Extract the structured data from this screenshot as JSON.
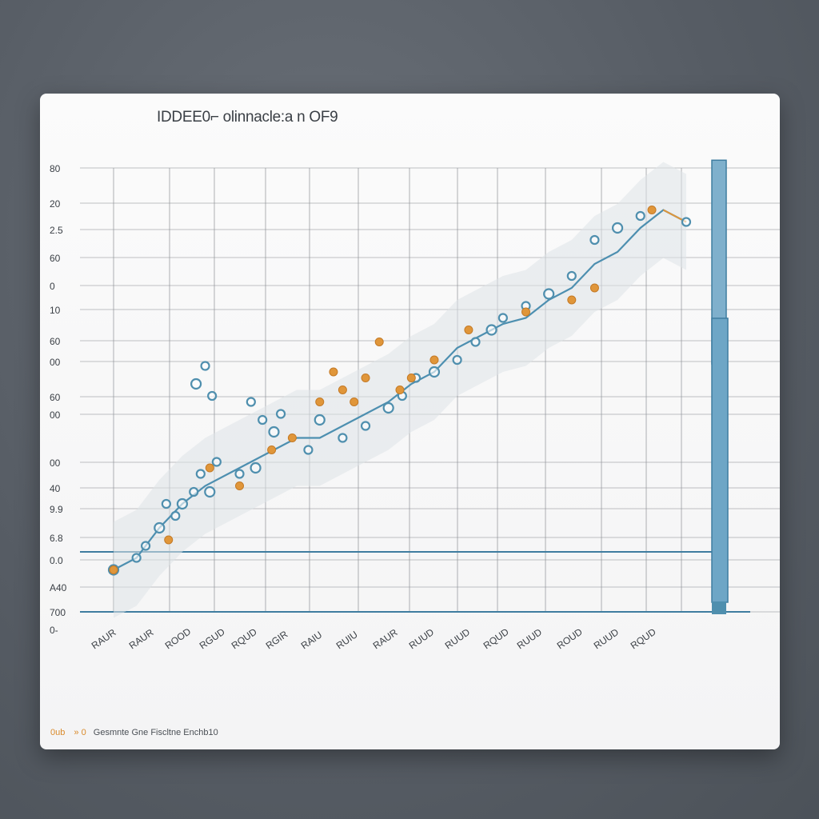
{
  "chart_data": {
    "type": "scatter",
    "title": "IDDEE0⌐ olinnacle:a n OF9",
    "yticks": [
      "80",
      "20",
      "2.5",
      "60",
      "0",
      "10",
      "60",
      "00",
      "60",
      "00",
      "00",
      "40",
      "9.9",
      "6.8",
      "0.0",
      "A40",
      "700"
    ],
    "xticks": [
      "RAUR",
      "RAUR",
      "ROOD",
      "RGUD",
      "RQUD",
      "RGIR",
      "RAIU",
      "RUIU",
      "RAUR",
      "RUUD",
      "RUUD",
      "RQUD",
      "RUUD",
      "ROUD",
      "RUUD",
      "RQUD"
    ],
    "x0_label": "0-",
    "grid": true,
    "trend": [
      [
        5,
        11
      ],
      [
        6,
        13
      ],
      [
        7,
        18
      ],
      [
        8,
        22
      ],
      [
        9,
        25
      ],
      [
        10,
        27
      ],
      [
        11,
        29
      ],
      [
        12,
        31
      ],
      [
        13,
        33
      ],
      [
        14,
        33
      ],
      [
        15,
        35
      ],
      [
        16,
        37
      ],
      [
        17,
        39
      ],
      [
        18,
        42
      ],
      [
        19,
        44
      ],
      [
        20,
        48
      ],
      [
        21,
        50
      ],
      [
        22,
        52
      ],
      [
        23,
        53
      ],
      [
        24,
        56
      ],
      [
        25,
        58
      ],
      [
        26,
        62
      ],
      [
        27,
        64
      ],
      [
        28,
        68
      ],
      [
        29,
        71
      ],
      [
        30,
        69
      ]
    ],
    "points_blue": [
      [
        5,
        11
      ],
      [
        6,
        13
      ],
      [
        6.4,
        15
      ],
      [
        7,
        18
      ],
      [
        7.3,
        22
      ],
      [
        7.7,
        20
      ],
      [
        8,
        22
      ],
      [
        8.5,
        24
      ],
      [
        8.8,
        27
      ],
      [
        9.2,
        24
      ],
      [
        9.5,
        29
      ],
      [
        10.5,
        27
      ],
      [
        11.2,
        28
      ],
      [
        11.5,
        36
      ],
      [
        11,
        39
      ],
      [
        12,
        34
      ],
      [
        12.3,
        37
      ],
      [
        13.5,
        31
      ],
      [
        14,
        36
      ],
      [
        15,
        33
      ],
      [
        16,
        35
      ],
      [
        17,
        38
      ],
      [
        17.6,
        40
      ],
      [
        18.2,
        43
      ],
      [
        19,
        44
      ],
      [
        20,
        46
      ],
      [
        20.8,
        49
      ],
      [
        21.5,
        51
      ],
      [
        22,
        53
      ],
      [
        23,
        55
      ],
      [
        24,
        57
      ],
      [
        25,
        60
      ],
      [
        26,
        66
      ],
      [
        27,
        68
      ],
      [
        28,
        70
      ],
      [
        30,
        69
      ],
      [
        8.6,
        42
      ],
      [
        9.3,
        40
      ],
      [
        9,
        45
      ]
    ],
    "points_orange": [
      [
        5,
        11
      ],
      [
        7.4,
        16
      ],
      [
        9.2,
        28
      ],
      [
        10.5,
        25
      ],
      [
        11.9,
        31
      ],
      [
        12.8,
        33
      ],
      [
        14,
        39
      ],
      [
        14.6,
        44
      ],
      [
        15,
        41
      ],
      [
        15.5,
        39
      ],
      [
        16,
        43
      ],
      [
        16.6,
        49
      ],
      [
        17.5,
        41
      ],
      [
        18,
        43
      ],
      [
        19,
        46
      ],
      [
        20.5,
        51
      ],
      [
        23,
        54
      ],
      [
        25,
        56
      ],
      [
        26,
        58
      ],
      [
        28.5,
        71
      ]
    ],
    "bars": [
      {
        "name": "",
        "value": 80
      },
      {
        "name": "",
        "value": 52
      }
    ]
  },
  "footer": {
    "legend_a": "0ub",
    "legend_sep": "» 0",
    "text": "Gesmnte Gne Fiscltne Enchb10"
  },
  "colors": {
    "blue": "#4f8fae",
    "orange": "#e0963a",
    "line": "#4d8fb0",
    "grid": "#8e9196"
  }
}
